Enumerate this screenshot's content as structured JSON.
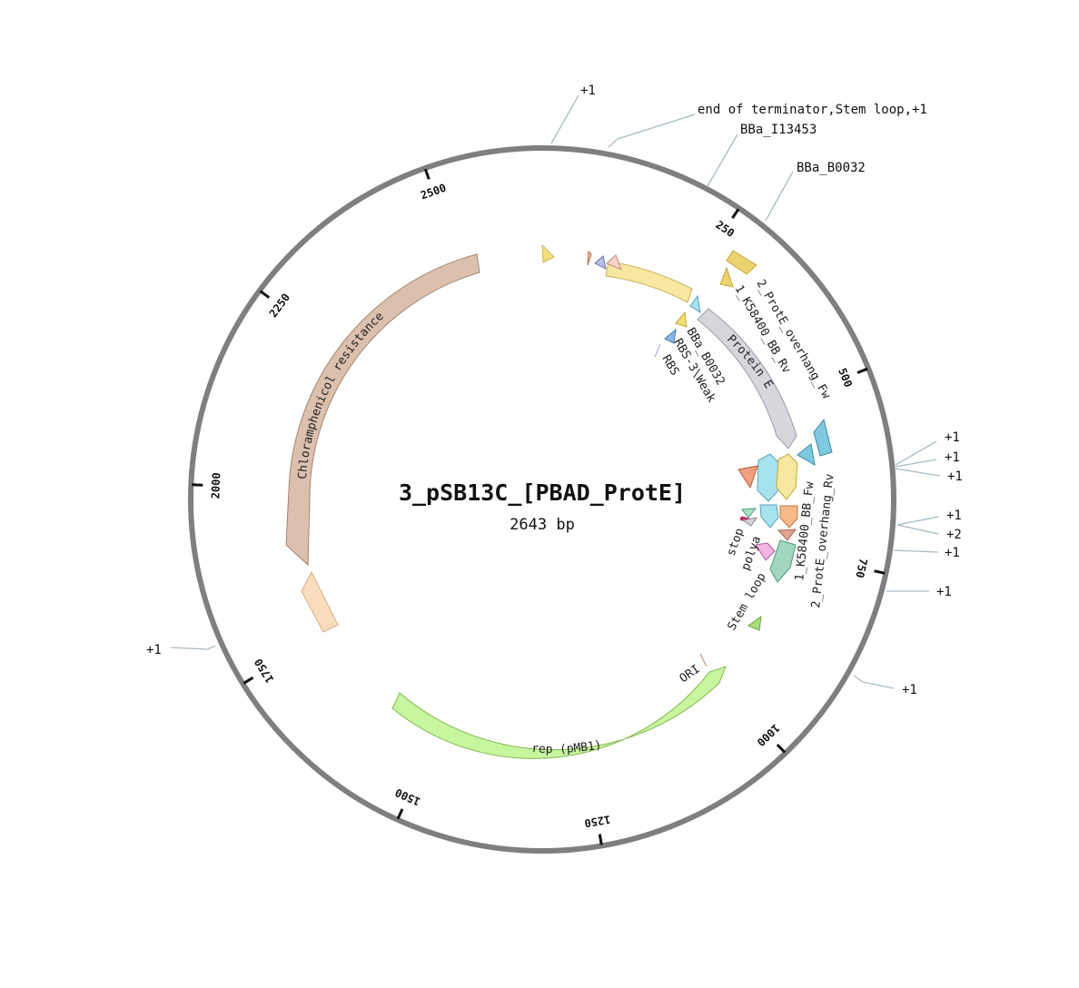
{
  "plasmid": {
    "name": "3_pSB13C_[PBAD_ProtE]",
    "length_label": "2643 bp"
  },
  "ticks": [
    "250",
    "500",
    "750",
    "1000",
    "1250",
    "1500",
    "1750",
    "2000",
    "2250",
    "2500"
  ],
  "annotations": [
    {
      "label": "+1"
    },
    {
      "label": "end of terminator,Stem loop,+1"
    },
    {
      "label": "BBa_I13453"
    },
    {
      "label": "BBa_B0032"
    },
    {
      "label": "+1"
    },
    {
      "label": "+1"
    },
    {
      "label": "+1"
    },
    {
      "label": "+1"
    },
    {
      "label": "+2"
    },
    {
      "label": "+1"
    },
    {
      "label": "+1"
    },
    {
      "label": "+1"
    },
    {
      "label": "+1"
    }
  ],
  "features": [
    {
      "label": "Chloramphenicol resistance",
      "color": "#dcc0ae"
    },
    {
      "label": "rep (pMB1)",
      "color": "#c8f5a0"
    },
    {
      "label": "Protein E",
      "color": "#d6d7dc"
    },
    {
      "label": "ORI",
      "color": "#b48a6a"
    },
    {
      "label": "2_ProtE_overhang_Fw",
      "color": "#ead370"
    },
    {
      "label": "1_K58400_BB_Rv",
      "color": "#ead370"
    },
    {
      "label": "BBa_B0032",
      "color": "#ead370"
    },
    {
      "label": "RBS-3\\Weak",
      "color": "#8db8e6"
    },
    {
      "label": "RBS",
      "color": "#b59be0"
    },
    {
      "label": "1_K58400_BB_Fw",
      "color": "#8fdce8"
    },
    {
      "label": "2_ProtE_overhang_Rv",
      "color": "#f7e7a0"
    },
    {
      "label": "stop",
      "color": "#c0306a"
    },
    {
      "label": "polya",
      "color": "#f2b4e0"
    },
    {
      "label": "Stem loop",
      "color": "#a6e07a"
    }
  ]
}
